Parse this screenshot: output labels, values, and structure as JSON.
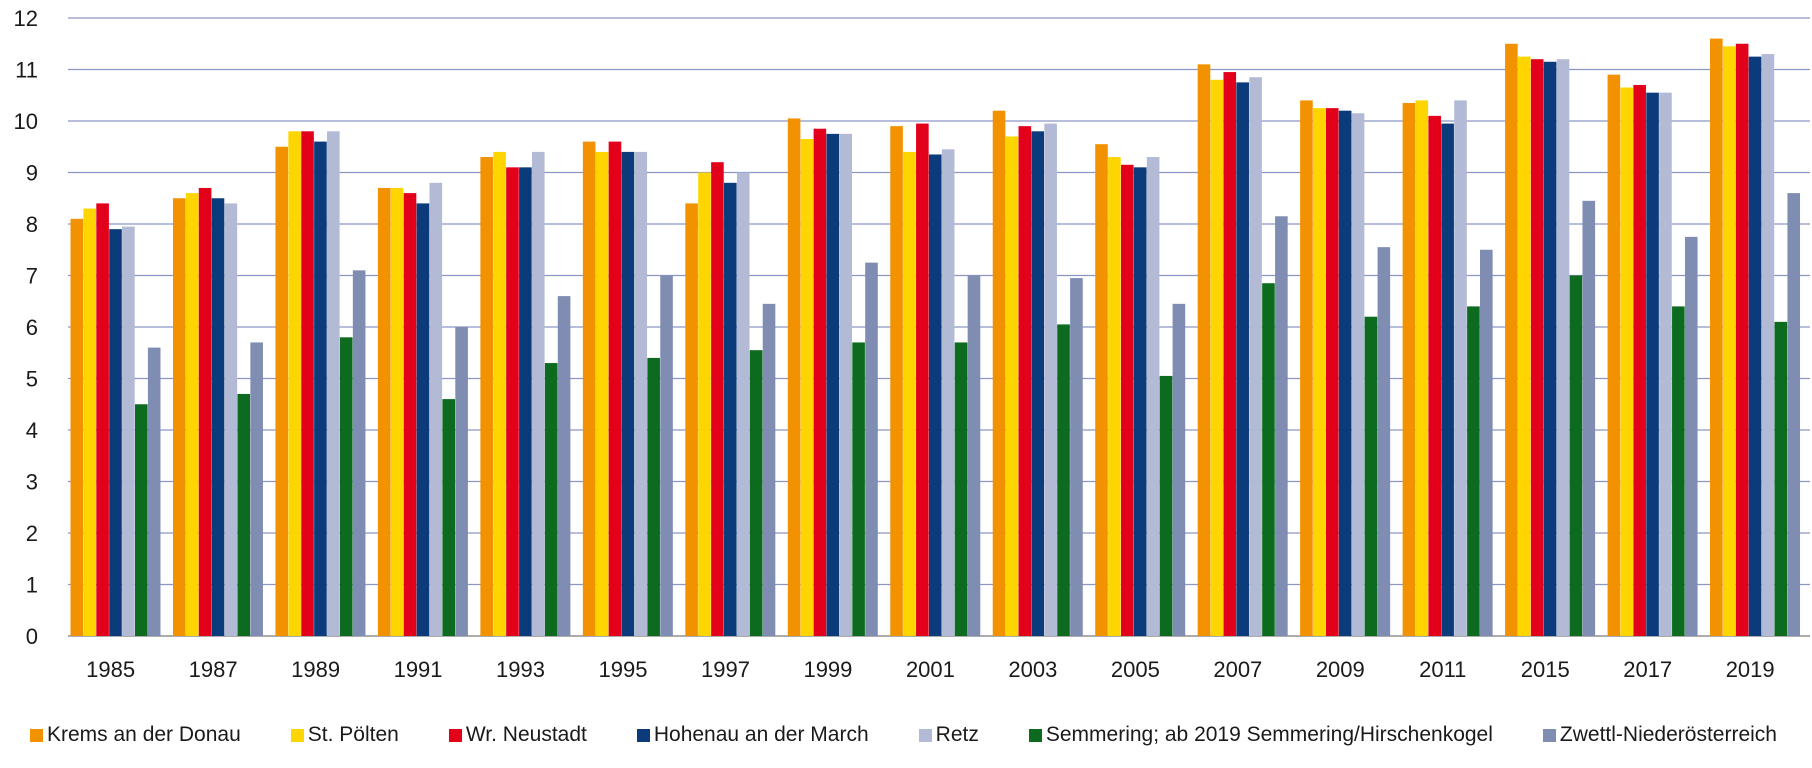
{
  "chart_data": {
    "type": "bar",
    "title": "",
    "xlabel": "",
    "ylabel": "",
    "ylim": [
      0,
      12
    ],
    "yticks": [
      0,
      1,
      2,
      3,
      4,
      5,
      6,
      7,
      8,
      9,
      10,
      11,
      12
    ],
    "grid": true,
    "legend_position": "bottom",
    "categories": [
      "1985",
      "1987",
      "1989",
      "1991",
      "1993",
      "1995",
      "1997",
      "1999",
      "2001",
      "2003",
      "2005",
      "2007",
      "2009",
      "2011",
      "2015",
      "2017",
      "2019"
    ],
    "series": [
      {
        "name": "Krems an der Donau",
        "color": "#F39200",
        "values": [
          8.1,
          8.5,
          9.5,
          8.7,
          9.3,
          9.6,
          8.4,
          10.05,
          9.9,
          10.2,
          9.55,
          11.1,
          10.4,
          10.35,
          11.5,
          10.9,
          11.6
        ]
      },
      {
        "name": "St. Pölten",
        "color": "#FFD500",
        "values": [
          8.3,
          8.6,
          9.8,
          8.7,
          9.4,
          9.4,
          9.0,
          9.65,
          9.4,
          9.7,
          9.3,
          10.8,
          10.25,
          10.4,
          11.25,
          10.65,
          11.45
        ]
      },
      {
        "name": "Wr. Neustadt",
        "color": "#E3001B",
        "values": [
          8.4,
          8.7,
          9.8,
          8.6,
          9.1,
          9.6,
          9.2,
          9.85,
          9.95,
          9.9,
          9.15,
          10.95,
          10.25,
          10.1,
          11.2,
          10.7,
          11.5
        ]
      },
      {
        "name": "Hohenau an der March",
        "color": "#0B3B7A",
        "values": [
          7.9,
          8.5,
          9.6,
          8.4,
          9.1,
          9.4,
          8.8,
          9.75,
          9.35,
          9.8,
          9.1,
          10.75,
          10.2,
          9.95,
          11.15,
          10.55,
          11.25
        ]
      },
      {
        "name": "Retz",
        "color": "#B2BAD5",
        "values": [
          7.95,
          8.4,
          9.8,
          8.8,
          9.4,
          9.4,
          9.0,
          9.75,
          9.45,
          9.95,
          9.3,
          10.85,
          10.15,
          10.4,
          11.2,
          10.55,
          11.3
        ]
      },
      {
        "name": "Semmering; ab 2019 Semmering/Hirschenkogel",
        "color": "#0C6B1E",
        "values": [
          4.5,
          4.7,
          5.8,
          4.6,
          5.3,
          5.4,
          5.55,
          5.7,
          5.7,
          6.05,
          5.05,
          6.85,
          6.2,
          6.4,
          7.0,
          6.4,
          6.1
        ]
      },
      {
        "name": "Zwettl-Niederösterreich",
        "color": "#7F8DB3",
        "values": [
          5.6,
          5.7,
          7.1,
          6.0,
          6.6,
          7.0,
          6.45,
          7.25,
          7.0,
          6.95,
          6.45,
          8.15,
          7.55,
          7.5,
          8.45,
          7.75,
          8.6
        ]
      }
    ]
  }
}
